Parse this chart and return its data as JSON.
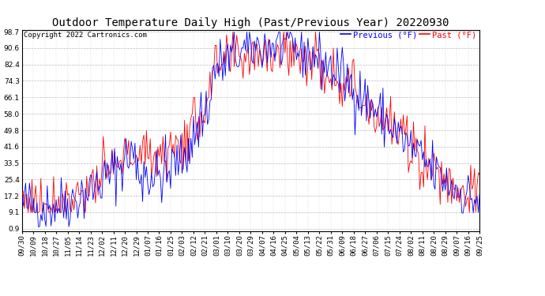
{
  "title": "Outdoor Temperature Daily High (Past/Previous Year) 20220930",
  "copyright": "Copyright 2022 Cartronics.com",
  "legend_previous": "Previous (°F)",
  "legend_past": "Past (°F)",
  "yticks": [
    0.9,
    9.1,
    17.2,
    25.4,
    33.5,
    41.6,
    49.8,
    58.0,
    66.1,
    74.3,
    82.4,
    90.6,
    98.7
  ],
  "ymin": 0.9,
  "ymax": 98.7,
  "color_previous": "#0000ff",
  "color_past": "#ff0000",
  "background_color": "#ffffff",
  "grid_color": "#bbbbbb",
  "title_fontsize": 10,
  "copyright_fontsize": 6.5,
  "legend_fontsize": 7.5,
  "tick_fontsize": 6.5,
  "xtick_labels": [
    "09/30",
    "10/09",
    "10/18",
    "10/27",
    "11/05",
    "11/14",
    "11/23",
    "12/02",
    "12/11",
    "12/20",
    "12/29",
    "01/07",
    "01/16",
    "01/25",
    "02/03",
    "02/12",
    "02/21",
    "03/01",
    "03/10",
    "03/20",
    "03/29",
    "04/07",
    "04/16",
    "04/25",
    "05/04",
    "05/13",
    "05/22",
    "05/31",
    "06/09",
    "06/18",
    "06/27",
    "07/06",
    "07/15",
    "07/24",
    "08/02",
    "08/11",
    "08/20",
    "08/29",
    "09/07",
    "09/16",
    "09/25"
  ]
}
